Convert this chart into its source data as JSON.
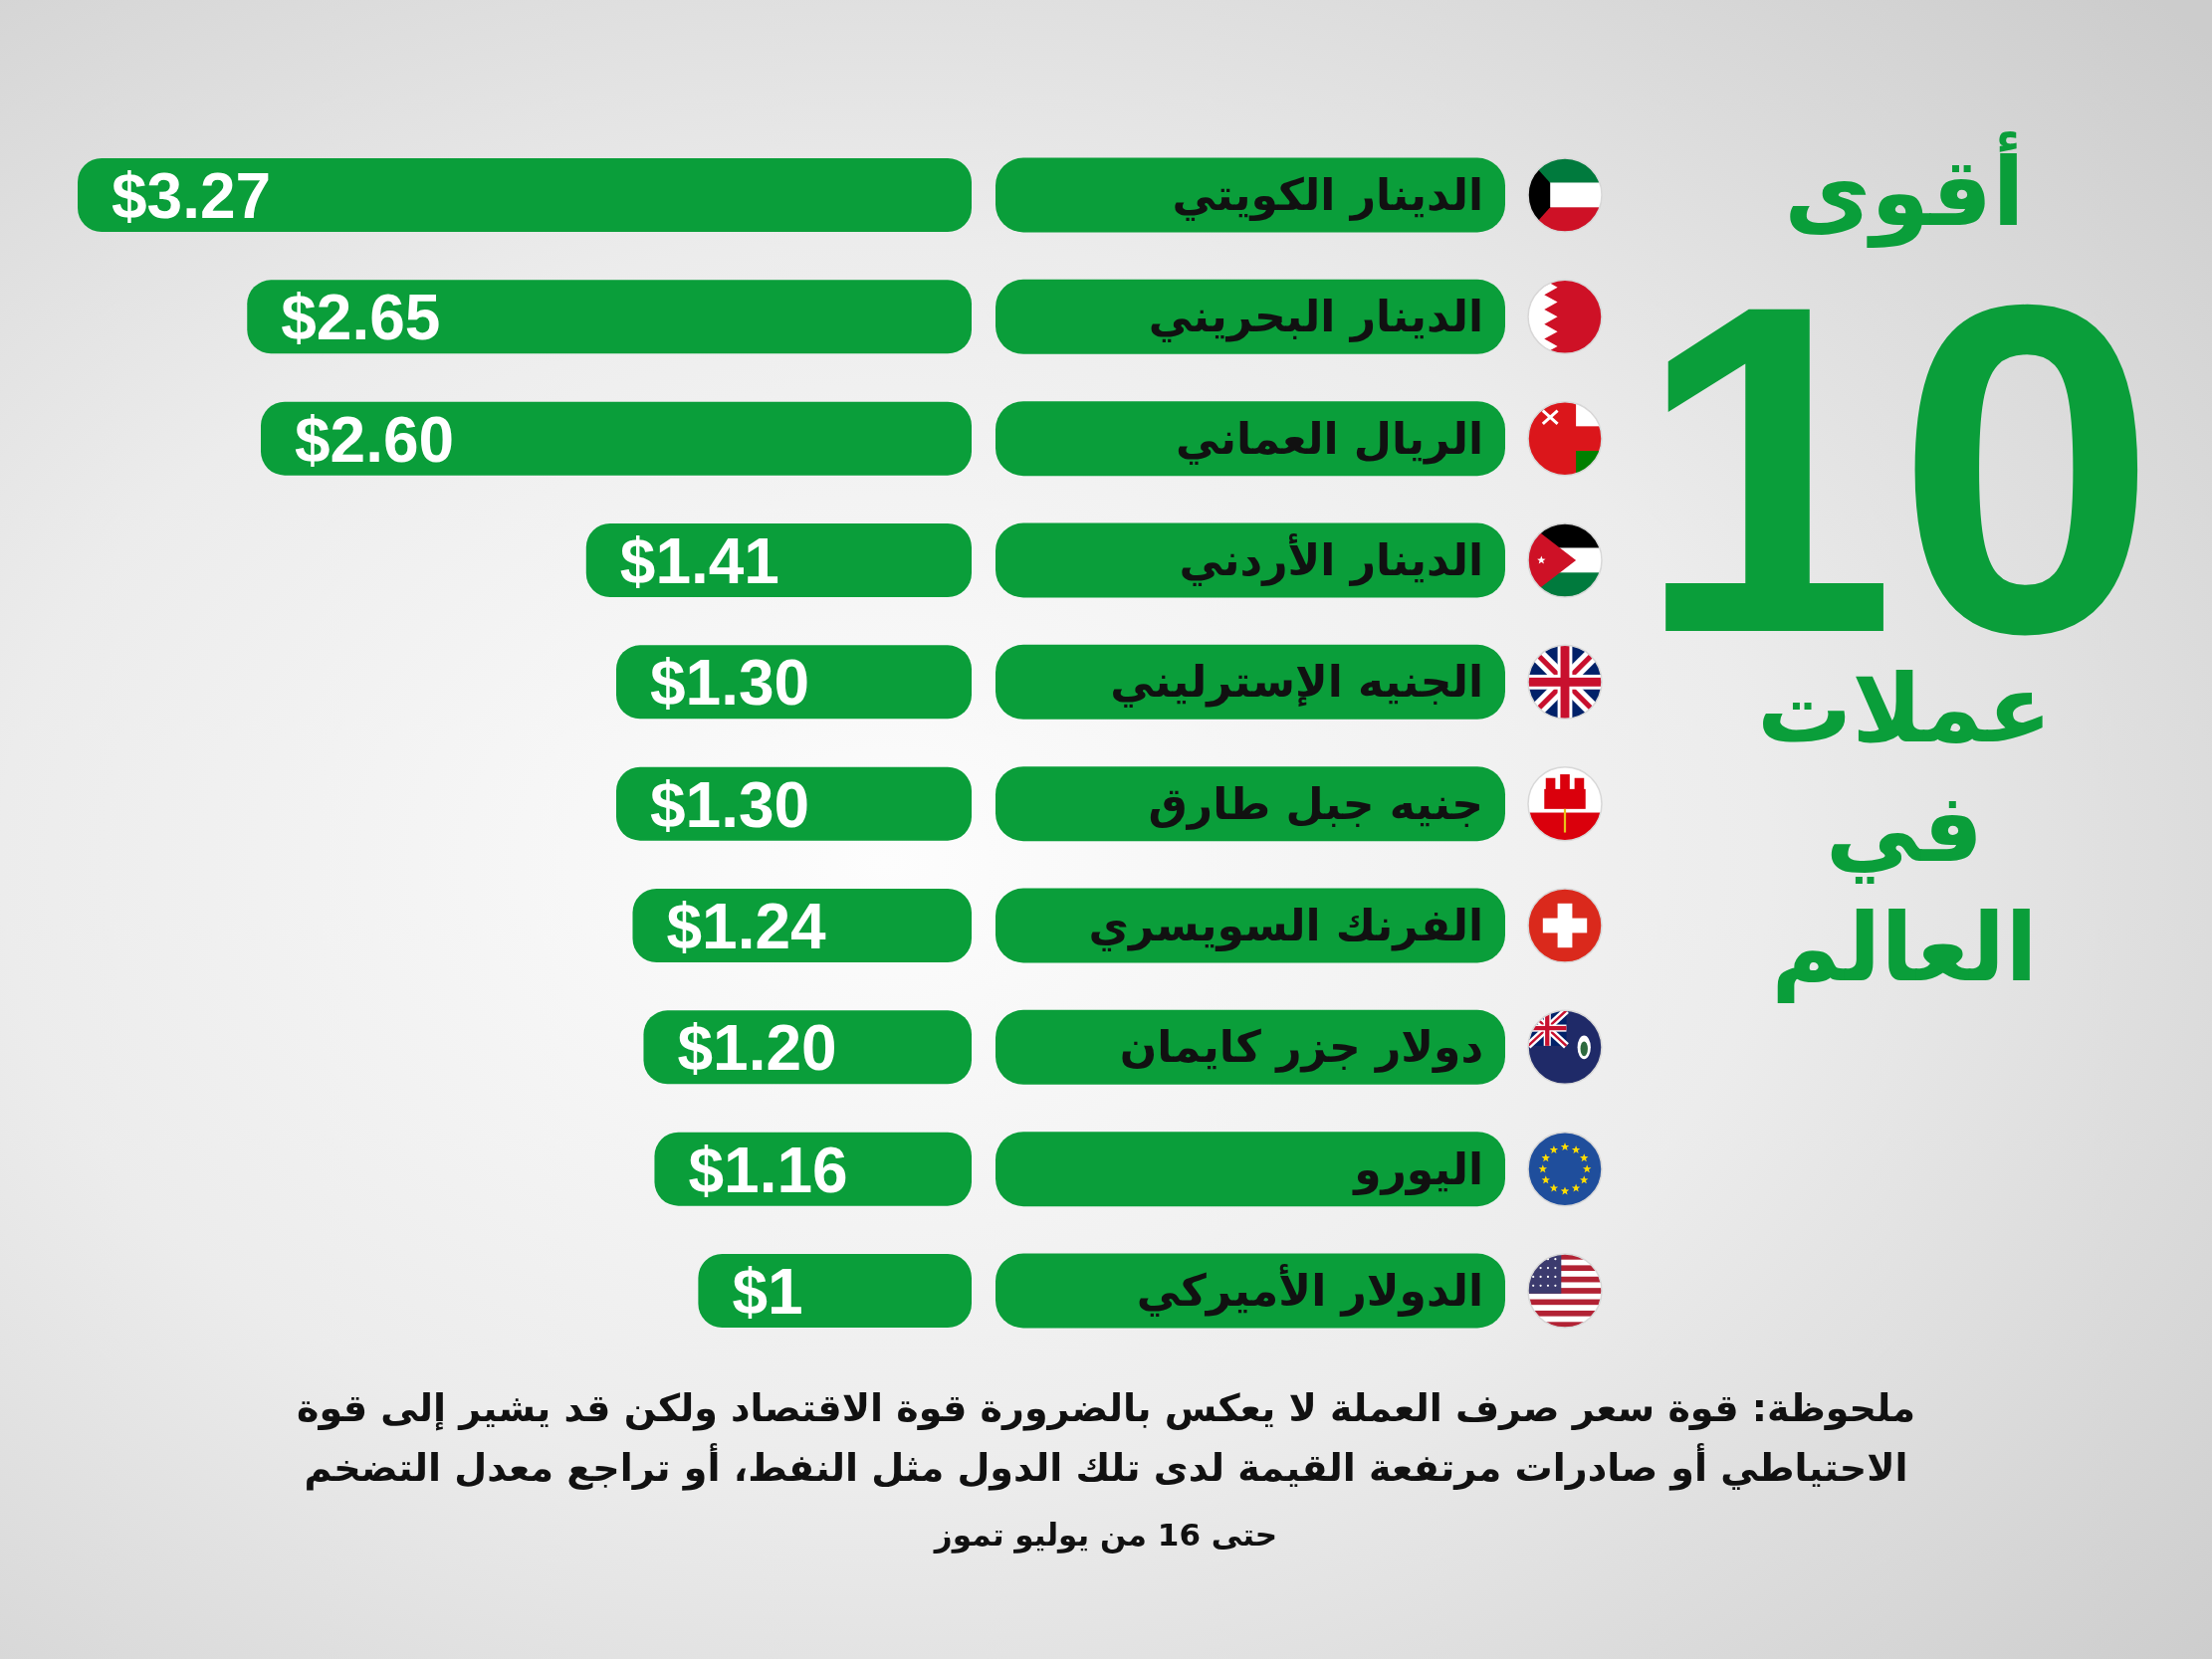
{
  "chart_data": {
    "type": "bar",
    "orientation": "horizontal",
    "title": "أقوى 10 عملات في العالم",
    "categories": [
      "الدينار الكويتي",
      "الدينار البحريني",
      "الريال العماني",
      "الدينار الأردني",
      "الجنيه الإسترليني",
      "جنيه جبل طارق",
      "الفرنك السويسري",
      "دولار جزر كايمان",
      "اليورو",
      "الدولار الأميركي"
    ],
    "values": [
      3.27,
      2.65,
      2.6,
      1.41,
      1.3,
      1.3,
      1.24,
      1.2,
      1.16,
      1
    ],
    "value_labels": [
      "$3.27",
      "$2.65",
      "$2.60",
      "$1.41",
      "$1.30",
      "$1.30",
      "$1.24",
      "$1.20",
      "$1.16",
      "$1"
    ],
    "color": "#0a9e3a",
    "annotations": [
      "ملحوظة: قوة سعر صرف العملة لا يعكس بالضرورة قوة الاقتصاد ولكن قد يشير إلى قوة الاحتياطي أو صادرات مرتفعة القيمة لدى تلك الدول مثل النفط، أو تراجع معدل التضخم",
      "حتى 16 من يوليو تموز"
    ]
  }
}
